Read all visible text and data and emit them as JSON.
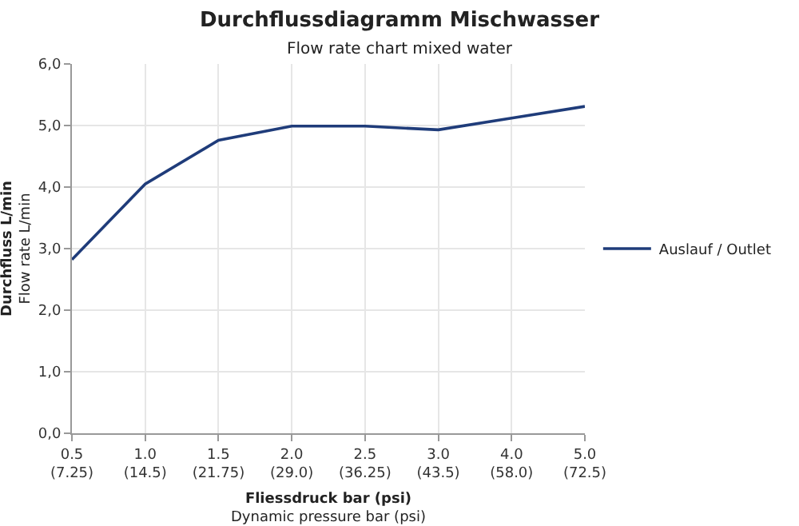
{
  "chart_data": {
    "type": "line",
    "title": "Durchflussdiagramm Mischwasser",
    "subtitle": "Flow rate chart mixed water",
    "xlabel": "Fliessdruck bar (psi)\nDynamic pressure bar (psi)",
    "ylabel": "Durchfluss L/min\nFlow rate L/min",
    "categories": [
      "0.5\n(7.25)",
      "1.0\n(14.5)",
      "1.5\n(21.75)",
      "2.0\n(29.0)",
      "2.5\n(36.25)",
      "3.0\n(43.5)",
      "4.0\n(58.0)",
      "5.0\n(72.5)"
    ],
    "series": [
      {
        "name": "Auslauf / Outlet",
        "color": "#1f3c7a",
        "values": [
          2.82,
          4.05,
          4.76,
          4.99,
          4.99,
          4.93,
          5.12,
          5.31
        ]
      }
    ],
    "ylim": [
      0,
      6
    ],
    "yticks": [
      {
        "value": 0,
        "label": "0,0"
      },
      {
        "value": 1,
        "label": "1,0"
      },
      {
        "value": 2,
        "label": "2,0"
      },
      {
        "value": 3,
        "label": "3,0"
      },
      {
        "value": 4,
        "label": "4,0"
      },
      {
        "value": 5,
        "label": "5,0"
      },
      {
        "value": 6,
        "label": "6,0"
      }
    ],
    "grid": true,
    "legend": "right",
    "marker": "none",
    "line_style": "solid"
  }
}
